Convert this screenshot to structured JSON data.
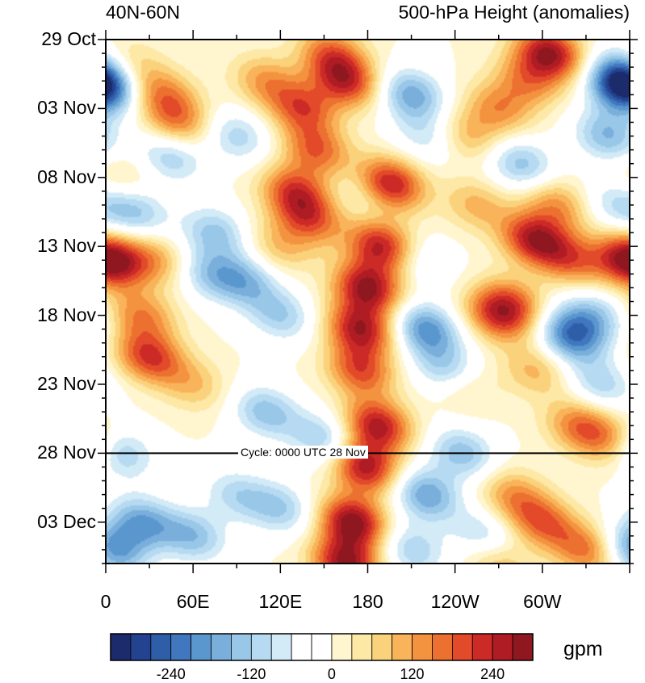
{
  "chart_data": {
    "type": "heatmap",
    "title_left": "40N-60N",
    "title_right": "500-hPa Height (anomalies)",
    "x_tick_labels": [
      "0",
      "60E",
      "120E",
      "180",
      "120W",
      "60W"
    ],
    "x_tick_lon": [
      0,
      60,
      120,
      180,
      240,
      300
    ],
    "xlim": [
      0,
      360
    ],
    "y_tick_labels": [
      "29 Oct",
      "03 Nov",
      "08 Nov",
      "13 Nov",
      "18 Nov",
      "23 Nov",
      "28 Nov",
      "03 Dec"
    ],
    "y_tick_day": [
      0,
      5,
      10,
      15,
      20,
      25,
      30,
      35
    ],
    "ylim_days": [
      0,
      38
    ],
    "y_direction": "time increases downward",
    "cycle_label": "Cycle: 0000 UTC 28 Nov",
    "cycle_day": 30,
    "colorbar": {
      "units": "gpm",
      "tick_labels": [
        "-240",
        "-120",
        "0",
        "120",
        "240"
      ],
      "tick_values": [
        -240,
        -120,
        0,
        120,
        240
      ],
      "levels_min": -300,
      "level_step": 30,
      "colors": [
        "#1b2b6b",
        "#23428f",
        "#2f5ea8",
        "#4177bf",
        "#5a97cf",
        "#7aafdb",
        "#99c7e8",
        "#b6daf1",
        "#d3eaf7",
        "#ffffff",
        "#ffffff",
        "#fff6d0",
        "#fde8a6",
        "#fbd27c",
        "#f9b35a",
        "#f39340",
        "#ec7030",
        "#e24a2a",
        "#cc2a27",
        "#b01c24",
        "#8f1720"
      ]
    },
    "anomaly_centers": [
      {
        "lon": 0,
        "day": 2.5,
        "value": -180
      },
      {
        "lon": 15,
        "day": 2,
        "value": 110
      },
      {
        "lon": 40,
        "day": 4,
        "value": 130
      },
      {
        "lon": 50,
        "day": 6,
        "value": 140
      },
      {
        "lon": 45,
        "day": 8.5,
        "value": -120
      },
      {
        "lon": 10,
        "day": 10,
        "value": 60
      },
      {
        "lon": 20,
        "day": 12.5,
        "value": -130
      },
      {
        "lon": 5,
        "day": 16,
        "value": 220
      },
      {
        "lon": 35,
        "day": 16,
        "value": 110
      },
      {
        "lon": 25,
        "day": 20,
        "value": 140
      },
      {
        "lon": 30,
        "day": 23,
        "value": 210
      },
      {
        "lon": 60,
        "day": 25,
        "value": 90
      },
      {
        "lon": 10,
        "day": 30,
        "value": -130
      },
      {
        "lon": 25,
        "day": 35,
        "value": -170
      },
      {
        "lon": 5,
        "day": 37,
        "value": -190
      },
      {
        "lon": 90,
        "day": 7,
        "value": -110
      },
      {
        "lon": 75,
        "day": 14,
        "value": -130
      },
      {
        "lon": 95,
        "day": 17.5,
        "value": -140
      },
      {
        "lon": 70,
        "day": 17,
        "value": -110
      },
      {
        "lon": 120,
        "day": 20,
        "value": -120
      },
      {
        "lon": 110,
        "day": 27,
        "value": -140
      },
      {
        "lon": 150,
        "day": 29,
        "value": -130
      },
      {
        "lon": 90,
        "day": 33,
        "value": -100
      },
      {
        "lon": 120,
        "day": 34,
        "value": -120
      },
      {
        "lon": 60,
        "day": 36,
        "value": -140
      },
      {
        "lon": 110,
        "day": 3,
        "value": 120
      },
      {
        "lon": 135,
        "day": 5,
        "value": 180
      },
      {
        "lon": 145,
        "day": 8,
        "value": 170
      },
      {
        "lon": 130,
        "day": 11,
        "value": 190
      },
      {
        "lon": 140,
        "day": 13,
        "value": 170
      },
      {
        "lon": 165,
        "day": 3,
        "value": 220
      },
      {
        "lon": 155,
        "day": 1,
        "value": 150
      },
      {
        "lon": 120,
        "day": 15,
        "value": 90
      },
      {
        "lon": 180,
        "day": 11,
        "value": -60
      },
      {
        "lon": 195,
        "day": 10.5,
        "value": 270
      },
      {
        "lon": 190,
        "day": 15,
        "value": 250
      },
      {
        "lon": 180,
        "day": 18,
        "value": 270
      },
      {
        "lon": 175,
        "day": 21,
        "value": 250
      },
      {
        "lon": 175,
        "day": 24,
        "value": 190
      },
      {
        "lon": 187,
        "day": 28,
        "value": 250
      },
      {
        "lon": 178,
        "day": 31,
        "value": 260
      },
      {
        "lon": 170,
        "day": 35,
        "value": 290
      },
      {
        "lon": 165,
        "day": 38,
        "value": 270
      },
      {
        "lon": 210,
        "day": 4,
        "value": -170
      },
      {
        "lon": 220,
        "day": 7,
        "value": -80
      },
      {
        "lon": 215,
        "day": 16,
        "value": -80
      },
      {
        "lon": 220,
        "day": 21,
        "value": -200
      },
      {
        "lon": 235,
        "day": 24,
        "value": -150
      },
      {
        "lon": 245,
        "day": 30,
        "value": -140
      },
      {
        "lon": 220,
        "day": 33,
        "value": -180
      },
      {
        "lon": 210,
        "day": 37,
        "value": -120
      },
      {
        "lon": 250,
        "day": 7,
        "value": 100
      },
      {
        "lon": 270,
        "day": 5,
        "value": 130
      },
      {
        "lon": 285,
        "day": 9,
        "value": -140
      },
      {
        "lon": 305,
        "day": 1,
        "value": 270
      },
      {
        "lon": 290,
        "day": 3,
        "value": 130
      },
      {
        "lon": 310,
        "day": 12,
        "value": 130
      },
      {
        "lon": 295,
        "day": 14.5,
        "value": 250
      },
      {
        "lon": 320,
        "day": 16,
        "value": 150
      },
      {
        "lon": 255,
        "day": 12,
        "value": 100
      },
      {
        "lon": 270,
        "day": 20,
        "value": 200
      },
      {
        "lon": 280,
        "day": 19,
        "value": 120
      },
      {
        "lon": 295,
        "day": 24,
        "value": 100
      },
      {
        "lon": 245,
        "day": 25,
        "value": 90
      },
      {
        "lon": 320,
        "day": 21.5,
        "value": -220
      },
      {
        "lon": 335,
        "day": 20,
        "value": -120
      },
      {
        "lon": 340,
        "day": 25,
        "value": -110
      },
      {
        "lon": 325,
        "day": 28,
        "value": 140
      },
      {
        "lon": 345,
        "day": 29,
        "value": 120
      },
      {
        "lon": 280,
        "day": 33,
        "value": 120
      },
      {
        "lon": 300,
        "day": 35,
        "value": 170
      },
      {
        "lon": 330,
        "day": 37,
        "value": 160
      },
      {
        "lon": 355,
        "day": 3.5,
        "value": -260
      },
      {
        "lon": 345,
        "day": 7,
        "value": -150
      },
      {
        "lon": 350,
        "day": 12,
        "value": -90
      },
      {
        "lon": 355,
        "day": 16,
        "value": 110
      },
      {
        "lon": 270,
        "day": 38,
        "value": 100
      },
      {
        "lon": 260,
        "day": 36,
        "value": -100
      }
    ]
  }
}
